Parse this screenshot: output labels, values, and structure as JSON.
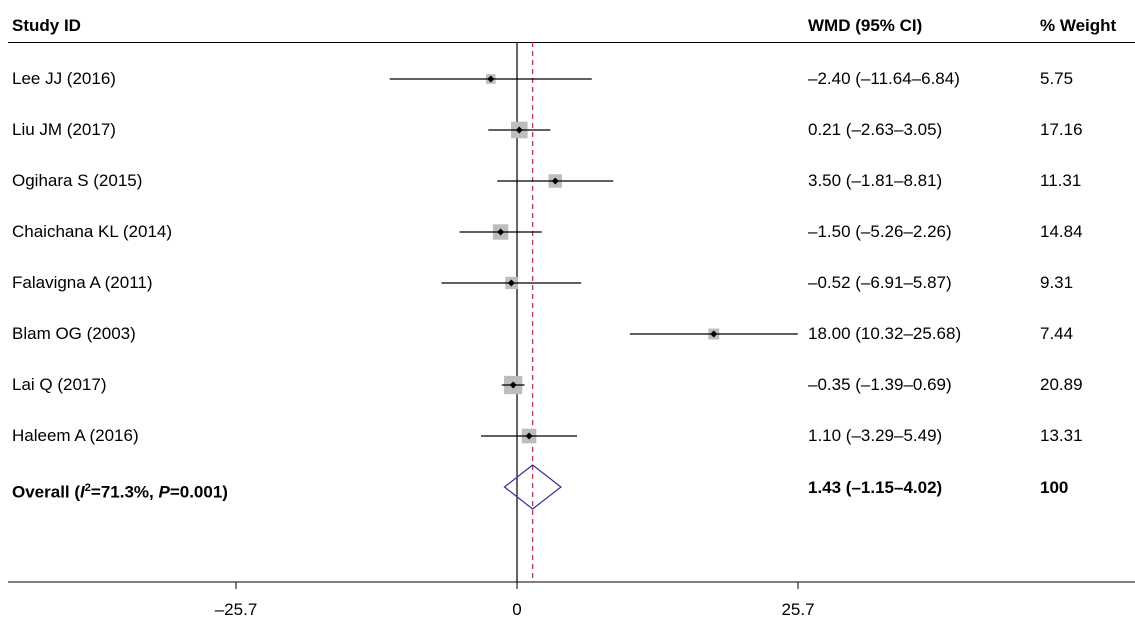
{
  "header": {
    "study_label": "Study ID",
    "wmd_label": "WMD (95% CI)",
    "weight_label": "% Weight"
  },
  "colors": {
    "weight_box": "#bdbdbd",
    "ref_line": "#b03040",
    "diamond": "#2e3192"
  },
  "overall": {
    "label_prefix": "Overall (",
    "i2_symbol": "I",
    "i2_sup": "2",
    "i2_value": "=71.3%, ",
    "p_symbol": "P",
    "p_value": "=0.001)",
    "wmd_text": "1.43 (–1.15–4.02)",
    "weight_text": "100"
  },
  "chart_data": {
    "type": "forest",
    "x_axis": {
      "ticks": [
        -25.7,
        0,
        25.7
      ],
      "tick_labels": [
        "–25.7",
        "0",
        "25.7"
      ],
      "null_value": 0
    },
    "studies": [
      {
        "name": "Lee JJ (2016)",
        "est": -2.4,
        "lo": -11.64,
        "hi": 6.84,
        "ci_text": "–2.40 (–11.64–6.84)",
        "weight": 5.75,
        "weight_text": "5.75"
      },
      {
        "name": "Liu JM (2017)",
        "est": 0.21,
        "lo": -2.63,
        "hi": 3.05,
        "ci_text": "0.21 (–2.63–3.05)",
        "weight": 17.16,
        "weight_text": "17.16"
      },
      {
        "name": "Ogihara S (2015)",
        "est": 3.5,
        "lo": -1.81,
        "hi": 8.81,
        "ci_text": "3.50 (–1.81–8.81)",
        "weight": 11.31,
        "weight_text": "11.31"
      },
      {
        "name": "Chaichana KL (2014)",
        "est": -1.5,
        "lo": -5.26,
        "hi": 2.26,
        "ci_text": "–1.50 (–5.26–2.26)",
        "weight": 14.84,
        "weight_text": "14.84"
      },
      {
        "name": "Falavigna A (2011)",
        "est": -0.52,
        "lo": -6.91,
        "hi": 5.87,
        "ci_text": "–0.52 (–6.91–5.87)",
        "weight": 9.31,
        "weight_text": "9.31"
      },
      {
        "name": "Blam OG (2003)",
        "est": 18.0,
        "lo": 10.32,
        "hi": 25.68,
        "ci_text": "18.00 (10.32–25.68)",
        "weight": 7.44,
        "weight_text": "7.44"
      },
      {
        "name": "Lai Q (2017)",
        "est": -0.35,
        "lo": -1.39,
        "hi": 0.69,
        "ci_text": "–0.35 (–1.39–0.69)",
        "weight": 20.89,
        "weight_text": "20.89"
      },
      {
        "name": "Haleem A (2016)",
        "est": 1.1,
        "lo": -3.29,
        "hi": 5.49,
        "ci_text": "1.10 (–3.29–5.49)",
        "weight": 13.31,
        "weight_text": "13.31"
      }
    ],
    "overall": {
      "est": 1.43,
      "lo": -1.15,
      "hi": 4.02,
      "weight": 100
    }
  }
}
